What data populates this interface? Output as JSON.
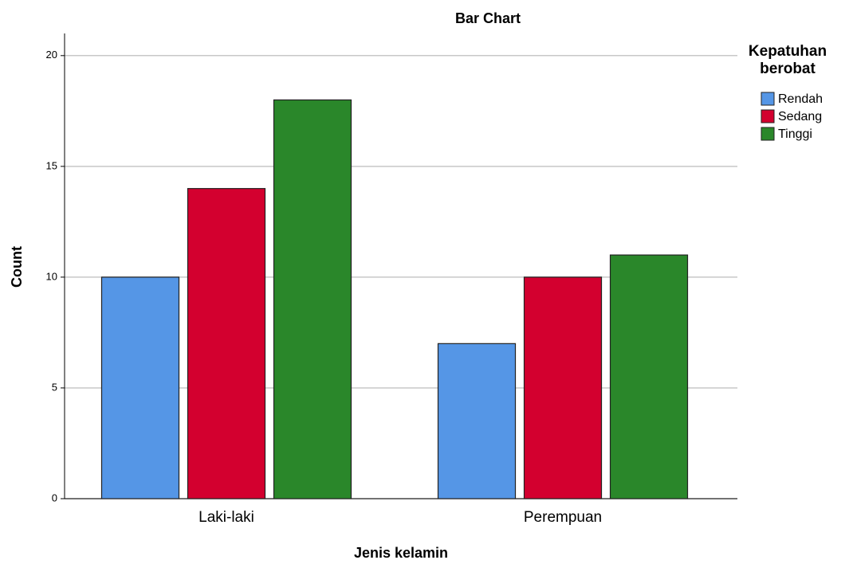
{
  "chart_data": {
    "type": "bar",
    "title": "Bar Chart",
    "x_label": "Jenis kelamin",
    "y_label": "Count",
    "categories": [
      "Laki-laki",
      "Perempuan"
    ],
    "legend_title": "Kepatuhan berobat",
    "series": [
      {
        "name": "Rendah",
        "color": "#5596e6",
        "values": [
          10,
          7
        ]
      },
      {
        "name": "Sedang",
        "color": "#d3002f",
        "values": [
          14,
          10
        ]
      },
      {
        "name": "Tinggi",
        "color": "#2a872a",
        "values": [
          18,
          11
        ]
      }
    ],
    "ylim": [
      0,
      21
    ],
    "yticks": [
      0,
      5,
      10,
      15,
      20
    ],
    "grid": true,
    "legend": "right"
  }
}
